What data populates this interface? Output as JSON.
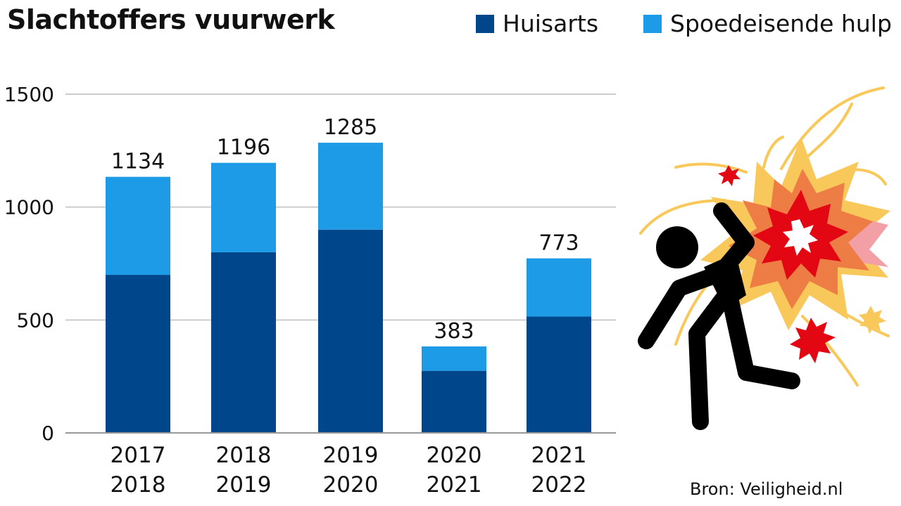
{
  "title": "Slachtoffers vuurwerk",
  "source": "Bron: Veiligheid.nl",
  "legend": [
    {
      "label": "Huisarts",
      "color": "#00468b"
    },
    {
      "label": "Spoedeisende hulp",
      "color": "#1e9be6"
    }
  ],
  "chart_data": {
    "type": "bar",
    "stacked": true,
    "categories": [
      [
        "2017",
        "2018"
      ],
      [
        "2018",
        "2019"
      ],
      [
        "2019",
        "2020"
      ],
      [
        "2020",
        "2021"
      ],
      [
        "2021",
        "2022"
      ]
    ],
    "series": [
      {
        "name": "Huisarts",
        "values": [
          700,
          800,
          900,
          275,
          515
        ],
        "color": "#00468b"
      },
      {
        "name": "Spoedeisende hulp",
        "values": [
          434,
          396,
          385,
          108,
          258
        ],
        "color": "#1e9be6"
      }
    ],
    "totals": [
      1134,
      1196,
      1285,
      383,
      773
    ],
    "yticks": [
      0,
      500,
      1000,
      1500
    ],
    "ylim": [
      0,
      1500
    ],
    "grid": true,
    "legend_position": "top-right"
  },
  "illustration": {
    "icon": "fireworks-victim-icon",
    "colors": {
      "figure": "#000000",
      "yellow": "#f9c85b",
      "orange": "#ee7d45",
      "red": "#e30613",
      "pink": "#f2a0a6"
    }
  }
}
